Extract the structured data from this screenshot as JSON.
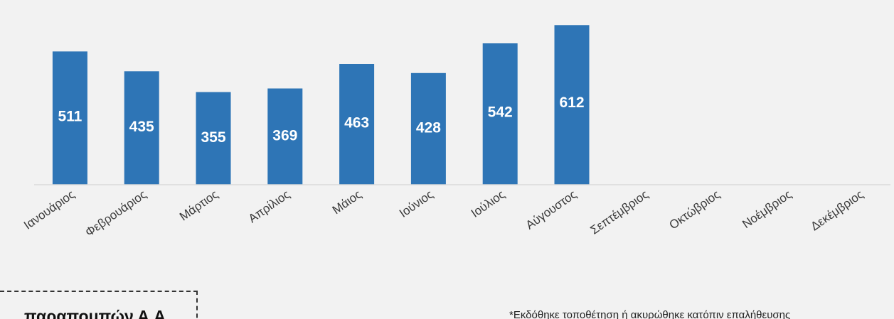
{
  "chart_data": {
    "type": "bar",
    "categories": [
      "Ιανουάριος",
      "Φεβρουάριος",
      "Μάρτιος",
      "Απρίλιος",
      "Μάιος",
      "Ιούνιος",
      "Ιούλιος",
      "Αύγουστος",
      "Σεπτέμβριος",
      "Οκτώβριος",
      "Νοέμβριος",
      "Δεκέμβριος"
    ],
    "values": [
      511,
      435,
      355,
      369,
      463,
      428,
      542,
      612,
      null,
      null,
      null,
      null
    ],
    "ylim": [
      0,
      640
    ],
    "grid": false,
    "legend": "none",
    "bar_color": "#2e75b6",
    "label_color": "#ffffff",
    "axis_color": "#d9d9d9"
  },
  "reference_box": {
    "title": "παραπομπών Α.Α."
  },
  "footnote": "*Εκδόθηκε τοποθέτηση ή ακυρώθηκε κατόπιν επαλήθευσης"
}
